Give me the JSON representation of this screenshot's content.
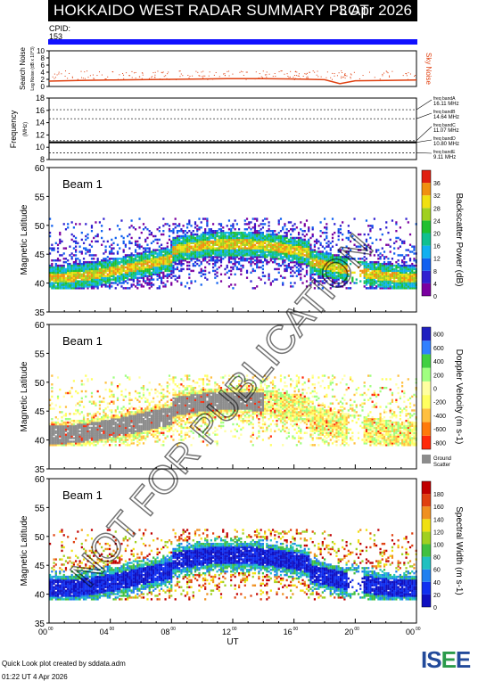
{
  "header": {
    "title": "HOKKAIDO WEST RADAR SUMMARY PLOT",
    "date": "3 Apr 2026",
    "cpid_label": "CPID:",
    "cpid_value": "153"
  },
  "colors": {
    "cpid_bar": "#1010ff",
    "noise_series": "#e04010",
    "ground_scatter": "#8c8c8c"
  },
  "watermark": "NOT FOR PUBLICATION",
  "footer": {
    "line1": "Quick Look plot created by sddata.adm",
    "line2": "01:22 UT  4 Apr 2026"
  },
  "logo": {
    "text_a": "IS",
    "text_b": "E",
    "text_c": "E"
  },
  "chart_data": [
    {
      "type": "line",
      "name": "search-noise",
      "ylabel": "Search Noise",
      "ylabel2": "Log Noise (dB x 10^3)",
      "right_label": "Sky Noise",
      "ylim": [
        0,
        10
      ],
      "yticks": [
        "0",
        "2",
        "4",
        "6",
        "8",
        "10"
      ],
      "x_hours": [
        0,
        2,
        4,
        6,
        8,
        10,
        12,
        14,
        16,
        18,
        19,
        20,
        22,
        24
      ],
      "values": [
        1.5,
        1.7,
        1.8,
        1.9,
        2.0,
        2.1,
        2.2,
        2.2,
        2.1,
        1.9,
        0.8,
        1.6,
        1.7,
        1.8
      ]
    },
    {
      "type": "line",
      "name": "frequency",
      "ylabel": "Frequency",
      "ylabel2": "(MHz)",
      "ylim": [
        8,
        18
      ],
      "yticks": [
        "8",
        "10",
        "12",
        "14",
        "16",
        "18"
      ],
      "freq_bands": [
        16.11,
        14.64,
        11.07,
        10.8,
        9.11
      ],
      "active_frequency": 10.8,
      "band_labels": [
        {
          "name": "freq bandA",
          "value": "16.11 MHz"
        },
        {
          "name": "freq bandB",
          "value": "14.64 MHz"
        },
        {
          "name": "freq bandC",
          "value": "11.07 MHz"
        },
        {
          "name": "freq bandD",
          "value": "10.80 MHz"
        },
        {
          "name": "freq bandE",
          "value": "9.11 MHz"
        }
      ]
    },
    {
      "type": "heatmap",
      "name": "backscatter-power",
      "beam_label": "Beam  1",
      "ylabel": "Magnetic Latitude",
      "ylim": [
        35,
        60
      ],
      "yticks": [
        "35",
        "40",
        "45",
        "50",
        "55",
        "60"
      ],
      "colorbar_label": "Backscatter Power (dB)",
      "colorbar_ticks": [
        "0",
        "4",
        "8",
        "12",
        "16",
        "20",
        "24",
        "28",
        "32",
        "36"
      ]
    },
    {
      "type": "heatmap",
      "name": "doppler-velocity",
      "beam_label": "Beam  1",
      "ylabel": "Magnetic Latitude",
      "ylim": [
        35,
        60
      ],
      "yticks": [
        "35",
        "40",
        "45",
        "50",
        "55",
        "60"
      ],
      "colorbar_label": "Doppler Velocity (m s-1)",
      "colorbar_ticks": [
        "-800",
        "-600",
        "-400",
        "-200",
        "0",
        "200",
        "400",
        "600",
        "800"
      ],
      "ground_scatter_label": "Ground",
      "ground_scatter_label2": "Scatter"
    },
    {
      "type": "heatmap",
      "name": "spectral-width",
      "beam_label": "Beam  1",
      "ylabel": "Magnetic Latitude",
      "ylim": [
        35,
        60
      ],
      "yticks": [
        "35",
        "40",
        "45",
        "50",
        "55",
        "60"
      ],
      "colorbar_label": "Spectral Width (m s-1)",
      "colorbar_ticks": [
        "0",
        "20",
        "40",
        "60",
        "80",
        "100",
        "120",
        "140",
        "160",
        "180"
      ],
      "xlabel": "UT",
      "xticks": [
        "00",
        "04",
        "08",
        "12",
        "16",
        "20",
        "00"
      ],
      "xtick_sup": "00"
    }
  ]
}
